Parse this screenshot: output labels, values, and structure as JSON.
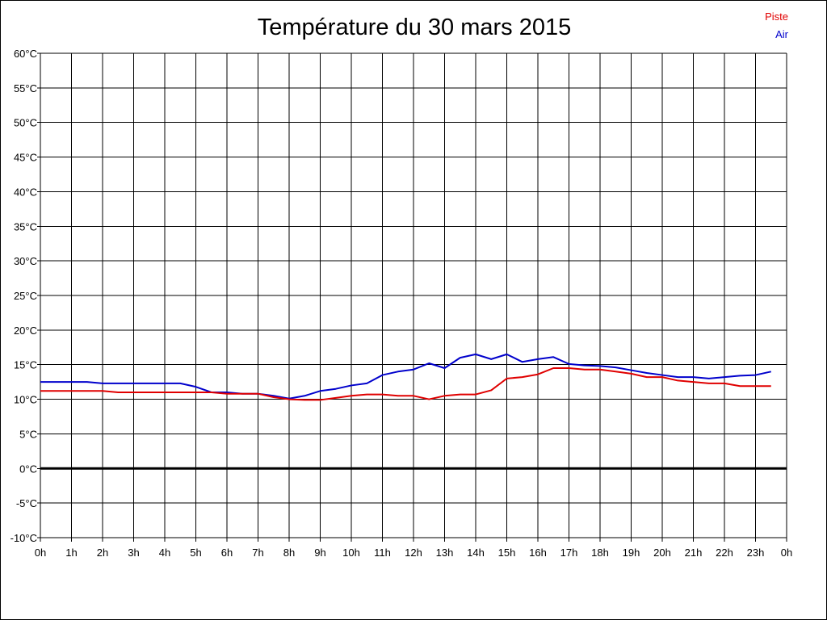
{
  "chart_data": {
    "type": "line",
    "title": "Température du 30 mars 2015",
    "xlabel": "",
    "ylabel": "",
    "ylim": [
      -10,
      60
    ],
    "ytick_step": 5,
    "ytick_labels": [
      "-10°C",
      "-5°C",
      "0°C",
      "5°C",
      "10°C",
      "15°C",
      "20°C",
      "25°C",
      "30°C",
      "35°C",
      "40°C",
      "45°C",
      "50°C",
      "55°C",
      "60°C"
    ],
    "xlim": [
      0,
      24
    ],
    "xtick_labels": [
      "0h",
      "1h",
      "2h",
      "3h",
      "4h",
      "5h",
      "6h",
      "7h",
      "8h",
      "9h",
      "10h",
      "11h",
      "12h",
      "13h",
      "14h",
      "15h",
      "16h",
      "17h",
      "18h",
      "19h",
      "20h",
      "21h",
      "22h",
      "23h",
      "0h"
    ],
    "grid": true,
    "legend_position": "top-right",
    "zero_line": true,
    "series": [
      {
        "name": "Piste",
        "color": "#e00000",
        "x": [
          0,
          0.5,
          1,
          1.5,
          2,
          2.5,
          3,
          3.5,
          4,
          4.5,
          5,
          5.5,
          6,
          6.5,
          7,
          7.5,
          8,
          8.5,
          9,
          9.5,
          10,
          10.5,
          11,
          11.5,
          12,
          12.5,
          13,
          13.5,
          14,
          14.5,
          15,
          15.5,
          16,
          16.5,
          17,
          17.5,
          18,
          18.5,
          19,
          19.5,
          20,
          20.5,
          21,
          21.5,
          22,
          22.5,
          23,
          23.5
        ],
        "values": [
          11.2,
          11.2,
          11.2,
          11.2,
          11.2,
          11.0,
          11.0,
          11.0,
          11.0,
          11.0,
          11.0,
          11.0,
          10.8,
          10.8,
          10.8,
          10.3,
          10.0,
          9.9,
          9.9,
          10.2,
          10.5,
          10.7,
          10.7,
          10.5,
          10.5,
          10.0,
          10.5,
          10.7,
          10.7,
          11.3,
          13.0,
          13.2,
          13.6,
          14.5,
          14.5,
          14.3,
          14.3,
          14.0,
          13.7,
          13.2,
          13.2,
          12.7,
          12.5,
          12.3,
          12.3,
          11.9,
          11.9,
          11.9
        ]
      },
      {
        "name": "Air",
        "color": "#0000cc",
        "x": [
          0,
          0.5,
          1,
          1.5,
          2,
          2.5,
          3,
          3.5,
          4,
          4.5,
          5,
          5.5,
          6,
          6.5,
          7,
          7.5,
          8,
          8.5,
          9,
          9.5,
          10,
          10.5,
          11,
          11.5,
          12,
          12.5,
          13,
          13.5,
          14,
          14.5,
          15,
          15.5,
          16,
          16.5,
          17,
          17.5,
          18,
          18.5,
          19,
          19.5,
          20,
          20.5,
          21,
          21.5,
          22,
          22.5,
          23,
          23.5
        ],
        "values": [
          12.5,
          12.5,
          12.5,
          12.5,
          12.3,
          12.3,
          12.3,
          12.3,
          12.3,
          12.3,
          11.8,
          11.0,
          11.0,
          10.8,
          10.8,
          10.5,
          10.1,
          10.5,
          11.2,
          11.5,
          12.0,
          12.3,
          13.5,
          14.0,
          14.3,
          15.2,
          14.5,
          16.0,
          16.5,
          15.8,
          16.5,
          15.4,
          15.8,
          16.1,
          15.1,
          14.9,
          14.8,
          14.6,
          14.2,
          13.8,
          13.5,
          13.2,
          13.2,
          13.0,
          13.2,
          13.4,
          13.5,
          14.0
        ]
      }
    ]
  }
}
